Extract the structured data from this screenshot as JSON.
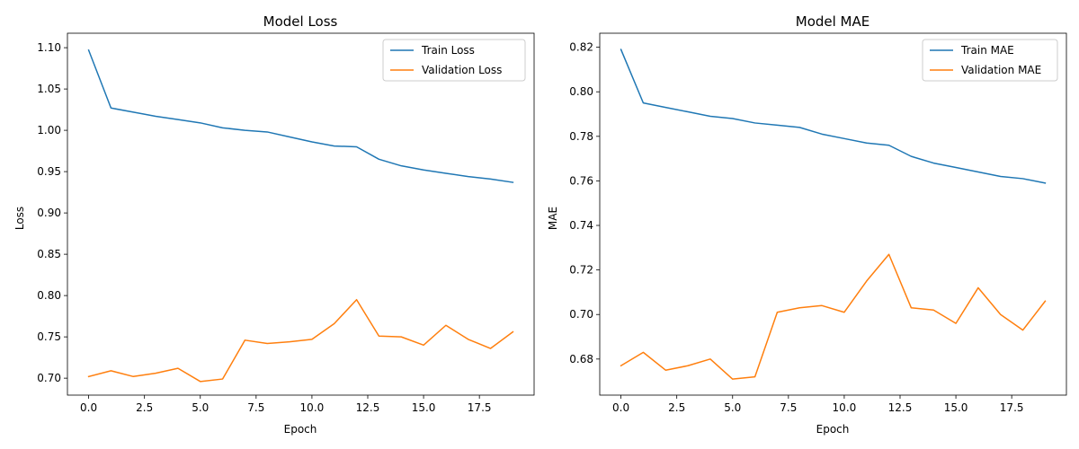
{
  "chart_data": [
    {
      "type": "line",
      "title": "Model Loss",
      "xlabel": "Epoch",
      "ylabel": "Loss",
      "xlim": [
        -0.95,
        19.95
      ],
      "ylim": [
        0.6795,
        1.1175
      ],
      "xticks": [
        0,
        2.5,
        5,
        7.5,
        10,
        12.5,
        15,
        17.5
      ],
      "xtick_labels": [
        "0.0",
        "2.5",
        "5.0",
        "7.5",
        "10.0",
        "12.5",
        "15.0",
        "17.5"
      ],
      "yticks": [
        0.7,
        0.75,
        0.8,
        0.85,
        0.9,
        0.95,
        1.0,
        1.05,
        1.1
      ],
      "ytick_labels": [
        "0.70",
        "0.75",
        "0.80",
        "0.85",
        "0.90",
        "0.95",
        "1.00",
        "1.05",
        "1.10"
      ],
      "grid": false,
      "legend": "top-right",
      "x": [
        0,
        1,
        2,
        3,
        4,
        5,
        6,
        7,
        8,
        9,
        10,
        11,
        12,
        13,
        14,
        15,
        16,
        17,
        18,
        19
      ],
      "series": [
        {
          "name": "Train Loss",
          "color": "#1f77b4",
          "values": [
            1.097,
            1.027,
            1.022,
            1.017,
            1.013,
            1.009,
            1.003,
            1.0,
            0.998,
            0.992,
            0.986,
            0.981,
            0.98,
            0.965,
            0.957,
            0.952,
            0.948,
            0.944,
            0.941,
            0.937
          ]
        },
        {
          "name": "Validation Loss",
          "color": "#ff7f0e",
          "values": [
            0.702,
            0.709,
            0.702,
            0.706,
            0.712,
            0.696,
            0.699,
            0.746,
            0.742,
            0.744,
            0.747,
            0.766,
            0.795,
            0.751,
            0.75,
            0.74,
            0.764,
            0.747,
            0.736,
            0.756
          ]
        }
      ]
    },
    {
      "type": "line",
      "title": "Model MAE",
      "xlabel": "Epoch",
      "ylabel": "MAE",
      "xlim": [
        -0.95,
        19.95
      ],
      "ylim": [
        0.6638,
        0.8263
      ],
      "xticks": [
        0,
        2.5,
        5,
        7.5,
        10,
        12.5,
        15,
        17.5
      ],
      "xtick_labels": [
        "0.0",
        "2.5",
        "5.0",
        "7.5",
        "10.0",
        "12.5",
        "15.0",
        "17.5"
      ],
      "yticks": [
        0.68,
        0.7,
        0.72,
        0.74,
        0.76,
        0.78,
        0.8,
        0.82
      ],
      "ytick_labels": [
        "0.68",
        "0.70",
        "0.72",
        "0.74",
        "0.76",
        "0.78",
        "0.80",
        "0.82"
      ],
      "grid": false,
      "legend": "top-right",
      "x": [
        0,
        1,
        2,
        3,
        4,
        5,
        6,
        7,
        8,
        9,
        10,
        11,
        12,
        13,
        14,
        15,
        16,
        17,
        18,
        19
      ],
      "series": [
        {
          "name": "Train MAE",
          "color": "#1f77b4",
          "values": [
            0.819,
            0.795,
            0.793,
            0.791,
            0.789,
            0.788,
            0.786,
            0.785,
            0.784,
            0.781,
            0.779,
            0.777,
            0.776,
            0.771,
            0.768,
            0.766,
            0.764,
            0.762,
            0.761,
            0.759
          ]
        },
        {
          "name": "Validation MAE",
          "color": "#ff7f0e",
          "values": [
            0.677,
            0.683,
            0.675,
            0.677,
            0.68,
            0.671,
            0.672,
            0.701,
            0.703,
            0.704,
            0.701,
            0.715,
            0.727,
            0.703,
            0.702,
            0.696,
            0.712,
            0.7,
            0.693,
            0.706
          ]
        }
      ]
    }
  ]
}
